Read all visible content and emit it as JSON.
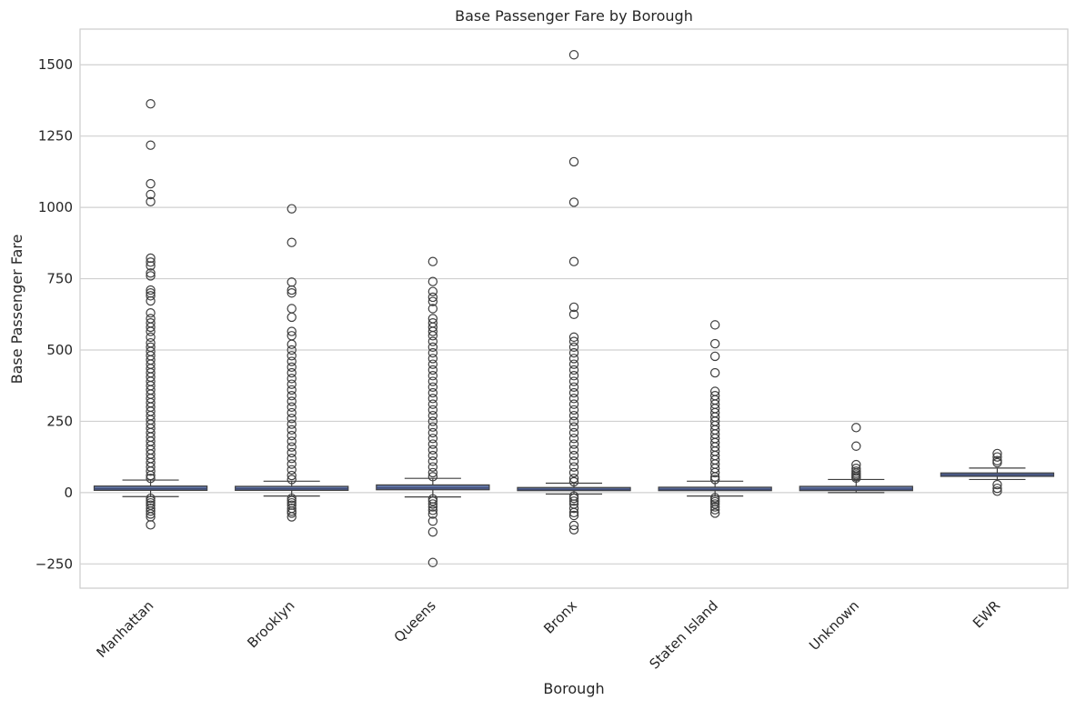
{
  "chart_data": {
    "type": "box",
    "title": "Base Passenger Fare by Borough",
    "xlabel": "Borough",
    "ylabel": "Base Passenger Fare",
    "ylim": [
      -335,
      1625
    ],
    "yticks": [
      -250,
      0,
      250,
      500,
      750,
      1000,
      1250,
      1500
    ],
    "ytick_labels": [
      "−250",
      "0",
      "250",
      "500",
      "750",
      "1000",
      "1250",
      "1500"
    ],
    "grid": "horizontal",
    "categories": [
      "Manhattan",
      "Brooklyn",
      "Queens",
      "Bronx",
      "Staten Island",
      "Unknown",
      "EWR"
    ],
    "boxes": [
      {
        "q1": 8,
        "median": 13,
        "q3": 23,
        "whisker_low": -14,
        "whisker_high": 44,
        "outliers_top": [
          1363,
          1218,
          1083,
          1045,
          1020,
          822,
          808,
          795,
          770,
          760,
          710,
          700,
          690,
          672,
          630,
          610,
          595,
          580,
          565,
          545,
          525,
          510,
          495,
          480,
          465,
          450,
          435,
          420,
          405,
          390,
          375,
          360,
          345,
          330,
          315,
          300,
          285,
          270,
          255,
          240,
          225,
          210,
          195,
          180,
          165,
          150,
          135,
          120,
          105,
          90,
          75,
          60,
          50
        ],
        "outliers_bottom": [
          -20,
          -28,
          -36,
          -44,
          -55,
          -65,
          -75,
          -85,
          -113
        ]
      },
      {
        "q1": 8,
        "median": 13,
        "q3": 22,
        "whisker_low": -12,
        "whisker_high": 40,
        "outliers_top": [
          995,
          877,
          738,
          710,
          700,
          645,
          615,
          565,
          550,
          520,
          500,
          480,
          460,
          440,
          420,
          400,
          380,
          360,
          340,
          320,
          300,
          280,
          260,
          240,
          220,
          200,
          180,
          160,
          140,
          120,
          100,
          80,
          60,
          46
        ],
        "outliers_bottom": [
          -20,
          -28,
          -36,
          -44,
          -55,
          -65,
          -72,
          -85
        ]
      },
      {
        "q1": 10,
        "median": 16,
        "q3": 27,
        "whisker_low": -15,
        "whisker_high": 50,
        "outliers_top": [
          810,
          740,
          705,
          685,
          670,
          645,
          610,
          595,
          580,
          565,
          550,
          530,
          510,
          490,
          470,
          450,
          430,
          410,
          390,
          370,
          350,
          330,
          310,
          290,
          270,
          250,
          230,
          210,
          190,
          170,
          150,
          130,
          110,
          90,
          70,
          56
        ],
        "outliers_bottom": [
          -22,
          -30,
          -40,
          -50,
          -62,
          -75,
          -100,
          -138,
          -245
        ]
      },
      {
        "q1": 7,
        "median": 11,
        "q3": 18,
        "whisker_low": -5,
        "whisker_high": 33,
        "outliers_top": [
          1535,
          1160,
          1018,
          810,
          650,
          625,
          545,
          530,
          510,
          490,
          470,
          450,
          430,
          410,
          390,
          370,
          350,
          330,
          310,
          290,
          270,
          250,
          230,
          210,
          190,
          170,
          150,
          130,
          110,
          90,
          70,
          50,
          38
        ],
        "outliers_bottom": [
          -12,
          -20,
          -30,
          -40,
          -55,
          -70,
          -80,
          -115,
          -130
        ]
      },
      {
        "q1": 7,
        "median": 11,
        "q3": 19,
        "whisker_low": -12,
        "whisker_high": 40,
        "outliers_top": [
          588,
          522,
          478,
          420,
          355,
          340,
          325,
          310,
          295,
          280,
          265,
          250,
          235,
          220,
          205,
          190,
          175,
          160,
          145,
          130,
          115,
          100,
          85,
          70,
          55,
          46
        ],
        "outliers_bottom": [
          -18,
          -25,
          -32,
          -40,
          -50,
          -60,
          -72
        ]
      },
      {
        "q1": 7,
        "median": 12,
        "q3": 22,
        "whisker_low": 0,
        "whisker_high": 46,
        "outliers_top": [
          228,
          163,
          98,
          85,
          75,
          68,
          62,
          56,
          51
        ]
      },
      {
        "q1": 57,
        "median": 62,
        "q3": 69,
        "whisker_low": 46,
        "whisker_high": 86,
        "outliers_top": [
          137,
          125,
          112,
          105
        ],
        "outliers_bottom": [
          28,
          15,
          5
        ]
      }
    ],
    "colors": {
      "box": "#6275a4",
      "median": "#3f4a73",
      "line": "#3f3f3f",
      "grid": "#d0d0d0",
      "frame": "#cccccc"
    }
  }
}
